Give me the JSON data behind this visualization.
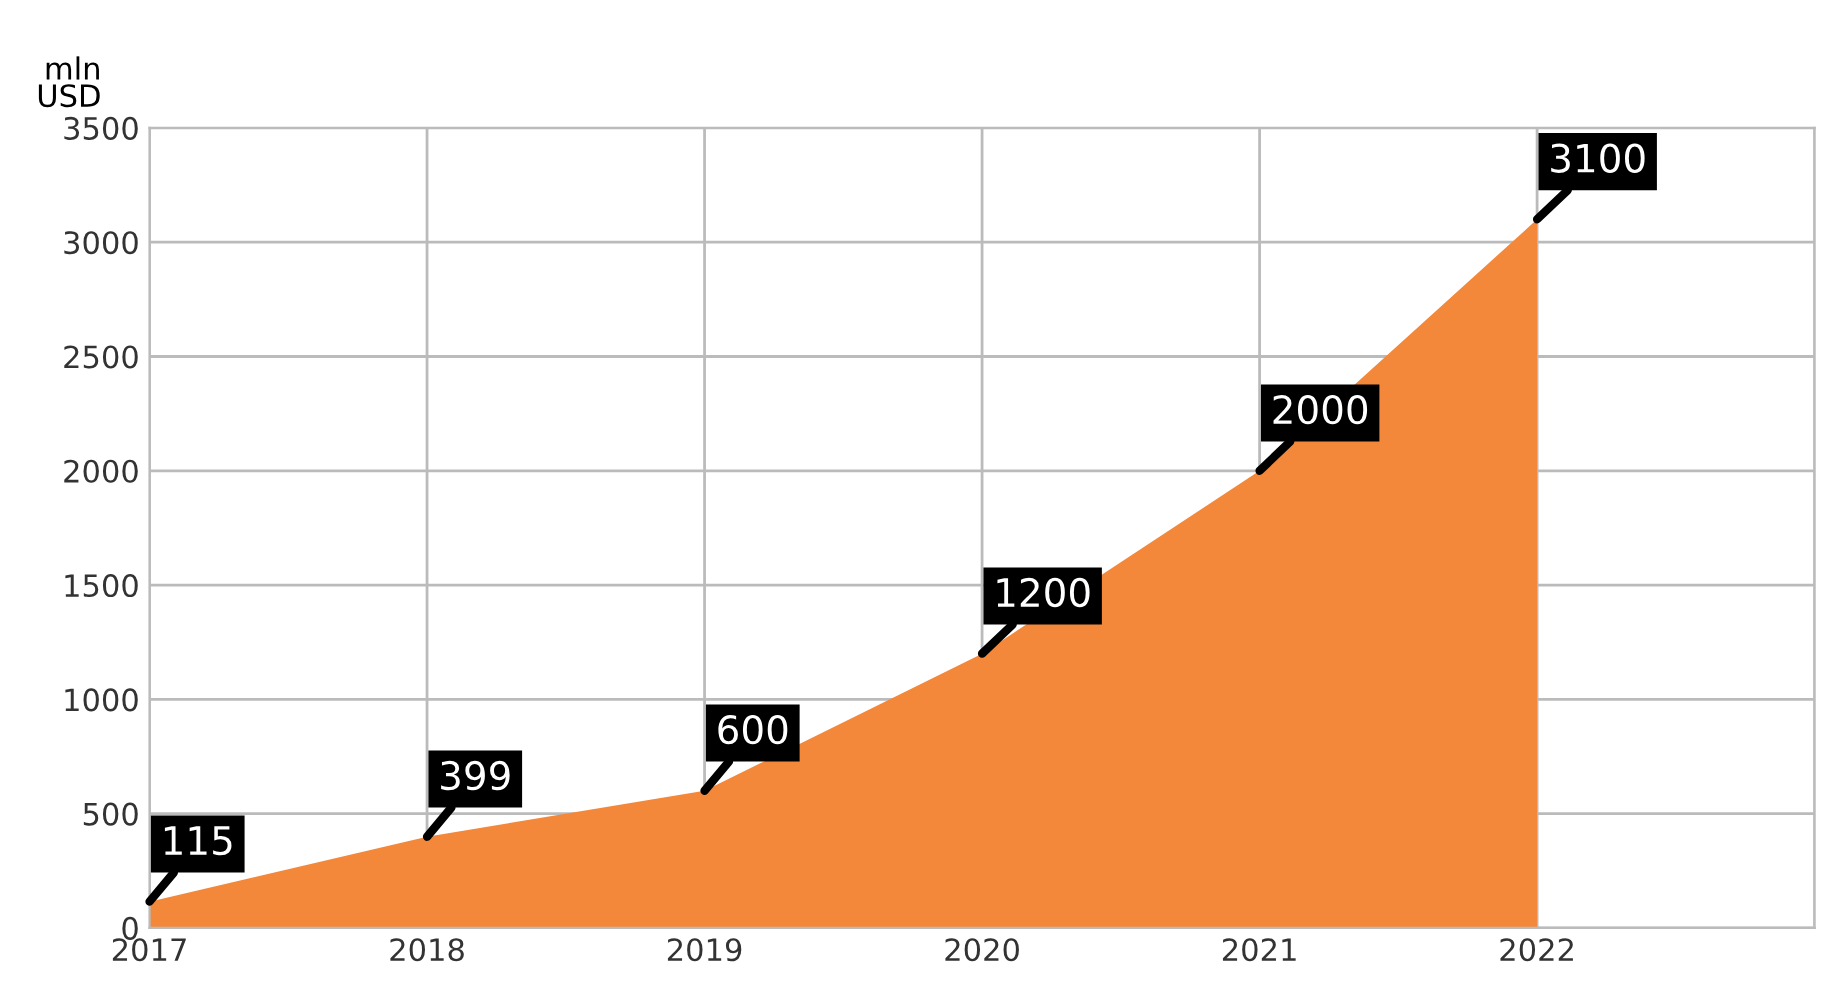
{
  "chart_data": {
    "type": "area",
    "ylabel": "mln\nUSD",
    "x": [
      2017,
      2018,
      2019,
      2020,
      2021,
      2022
    ],
    "series": [
      {
        "color": "#f3873a",
        "values": [
          115,
          399,
          600,
          1200,
          2000,
          3100
        ]
      }
    ],
    "xlim": [
      2017,
      2023
    ],
    "xticks": [
      2017,
      2018,
      2019,
      2020,
      2021,
      2022,
      {
        "value": 2023,
        "label": null
      }
    ],
    "ylim": [
      0,
      3500
    ],
    "yticks": [
      0,
      500,
      1000,
      1500,
      2000,
      2500,
      3000,
      3500
    ],
    "grid": true,
    "data_labels": true
  }
}
